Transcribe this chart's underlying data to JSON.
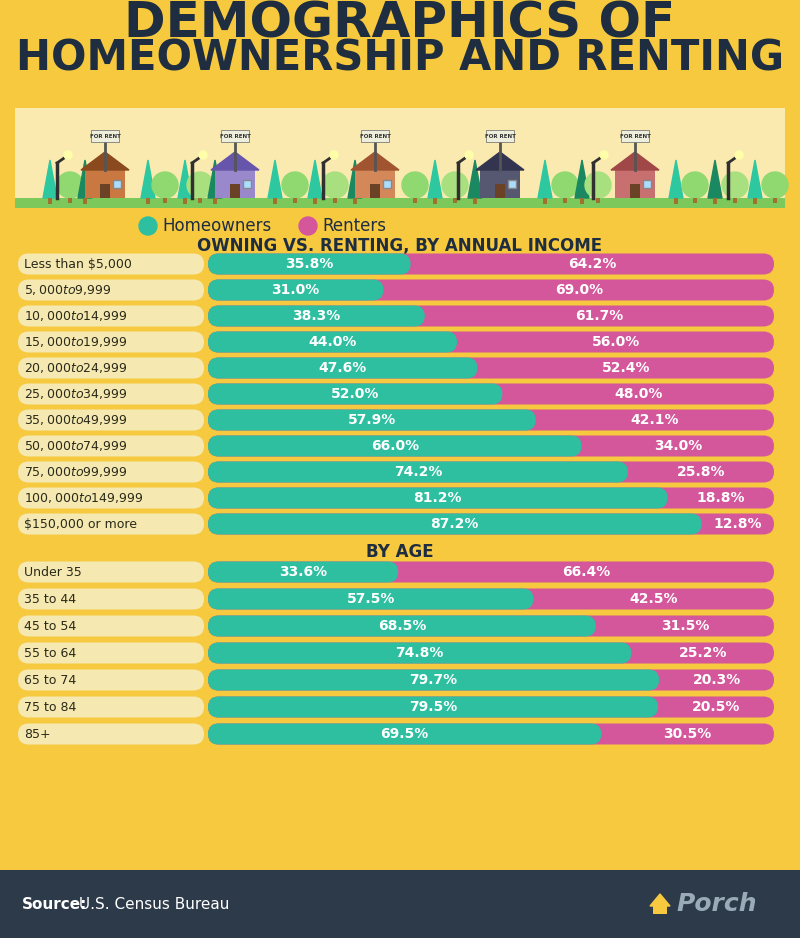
{
  "title_line1": "DEMOGRAPHICS OF",
  "title_line2": "HOMEOWNERSHIP AND RENTING",
  "bg_color": "#F6C93E",
  "chart_bg": "#FAF0C8",
  "bar_bg_color": "#F5E8B0",
  "teal_color": "#2DBFA0",
  "pink_color": "#D4579B",
  "dark_color": "#1E2D40",
  "text_dark": "#2A3A2A",
  "legend_homeowners": "Homeowners",
  "legend_renters": "Renters",
  "section1_title": "OWNING VS. RENTING, BY ANNUAL INCOME",
  "section2_title": "BY AGE",
  "income_categories": [
    "Less than $5,000",
    "$5,000 to $9,999",
    "$10,000 to $14,999",
    "$15,000 to $19,999",
    "$20,000 to $24,999",
    "$25,000 to $34,999",
    "$35,000 to $49,999",
    "$50,000 to $74,999",
    "$75,000 to $99,999",
    "$100,000 to $149,999",
    "$150,000 or more"
  ],
  "income_homeowners": [
    35.8,
    31.0,
    38.3,
    44.0,
    47.6,
    52.0,
    57.9,
    66.0,
    74.2,
    81.2,
    87.2
  ],
  "income_renters": [
    64.2,
    69.0,
    61.7,
    56.0,
    52.4,
    48.0,
    42.1,
    34.0,
    25.8,
    18.8,
    12.8
  ],
  "age_categories": [
    "Under 35",
    "35 to 44",
    "45 to 54",
    "55 to 64",
    "65 to 74",
    "75 to 84",
    "85+"
  ],
  "age_homeowners": [
    33.6,
    57.5,
    68.5,
    74.8,
    79.7,
    79.5,
    69.5
  ],
  "age_renters": [
    66.4,
    42.5,
    31.5,
    25.2,
    20.3,
    20.5,
    30.5
  ],
  "footer_bg": "#2D3A4A",
  "source_bold": "Source:",
  "source_detail": " U.S. Census Bureau",
  "brand_text": "Porch",
  "illus_bg": "#FAEAB0",
  "ground_color": "#7DC85A",
  "teal_tree": "#2DC8A0",
  "light_tree": "#A8D878",
  "dark_tree": "#1A9870"
}
